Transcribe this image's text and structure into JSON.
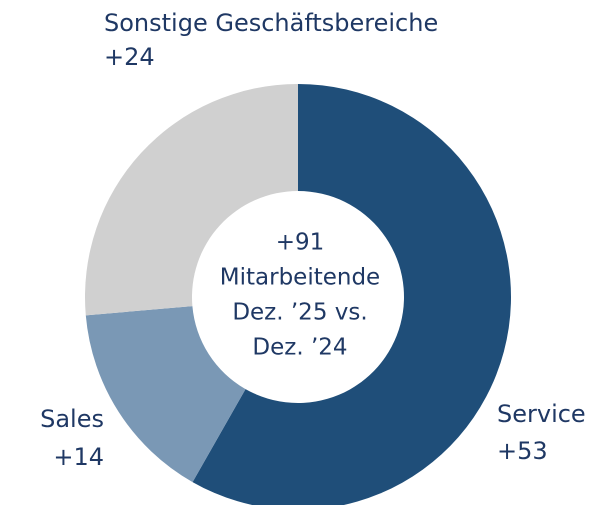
{
  "chart_data": {
    "type": "donut",
    "categories": [
      "Service",
      "Sales",
      "Sonstige Geschäftsbereiche"
    ],
    "values": [
      53,
      14,
      24
    ],
    "value_labels": [
      "+53",
      "+14",
      "+24"
    ],
    "colors": [
      "#1f4e79",
      "#7a98b5",
      "#d0d0d0"
    ],
    "center_text": [
      "+91",
      "Mitarbeitende",
      "Dez. ’25 vs.",
      "Dez. ’24"
    ]
  }
}
